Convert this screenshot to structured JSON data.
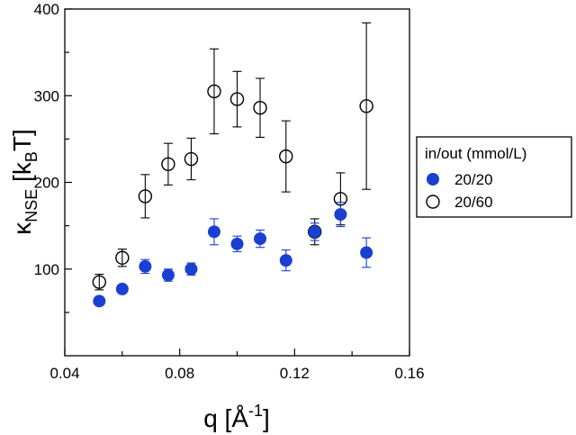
{
  "chart_data": {
    "type": "scatter",
    "xlabel": {
      "base": "q [",
      "unit": "Å",
      "sup": "-1",
      "close": "]"
    },
    "ylabel": {
      "base": "κ",
      "sub": "NSE",
      "mid": " [k",
      "sub2": "B",
      "close": "T]"
    },
    "xlim": [
      0.04,
      0.16
    ],
    "ylim": [
      0,
      400
    ],
    "xticks": [
      0.04,
      0.08,
      0.12,
      0.16
    ],
    "xtick_labels": [
      "0.04",
      "0.08",
      "0.12",
      "0.16"
    ],
    "yticks": [
      100,
      200,
      300,
      400
    ],
    "ytick_labels": [
      "100",
      "200",
      "300",
      "400"
    ],
    "legend": {
      "title": "in/out (mmol/L)",
      "placement": "right"
    },
    "series": [
      {
        "name": "20/20",
        "marker": "filled-circle",
        "color": "#1a3fd1",
        "points": [
          {
            "x": 0.052,
            "y": 63,
            "err": 0
          },
          {
            "x": 0.06,
            "y": 77,
            "err": 0
          },
          {
            "x": 0.068,
            "y": 103,
            "err": 8
          },
          {
            "x": 0.076,
            "y": 93,
            "err": 7
          },
          {
            "x": 0.084,
            "y": 100,
            "err": 7
          },
          {
            "x": 0.092,
            "y": 143,
            "err": 15
          },
          {
            "x": 0.1,
            "y": 129,
            "err": 9
          },
          {
            "x": 0.108,
            "y": 135,
            "err": 10
          },
          {
            "x": 0.117,
            "y": 110,
            "err": 12
          },
          {
            "x": 0.127,
            "y": 143,
            "err": 10
          },
          {
            "x": 0.136,
            "y": 163,
            "err": 14
          },
          {
            "x": 0.145,
            "y": 119,
            "err": 17
          }
        ]
      },
      {
        "name": "20/60",
        "marker": "open-circle",
        "color": "#000000",
        "points": [
          {
            "x": 0.052,
            "y": 85,
            "err": 9
          },
          {
            "x": 0.06,
            "y": 113,
            "err": 10
          },
          {
            "x": 0.068,
            "y": 184,
            "err": 25
          },
          {
            "x": 0.076,
            "y": 221,
            "err": 24
          },
          {
            "x": 0.084,
            "y": 227,
            "err": 24
          },
          {
            "x": 0.092,
            "y": 305,
            "err": 49
          },
          {
            "x": 0.1,
            "y": 296,
            "err": 32
          },
          {
            "x": 0.108,
            "y": 286,
            "err": 34
          },
          {
            "x": 0.117,
            "y": 230,
            "err": 41
          },
          {
            "x": 0.127,
            "y": 143,
            "err": 15
          },
          {
            "x": 0.136,
            "y": 181,
            "err": 30
          },
          {
            "x": 0.145,
            "y": 288,
            "err": 96
          }
        ]
      }
    ]
  }
}
